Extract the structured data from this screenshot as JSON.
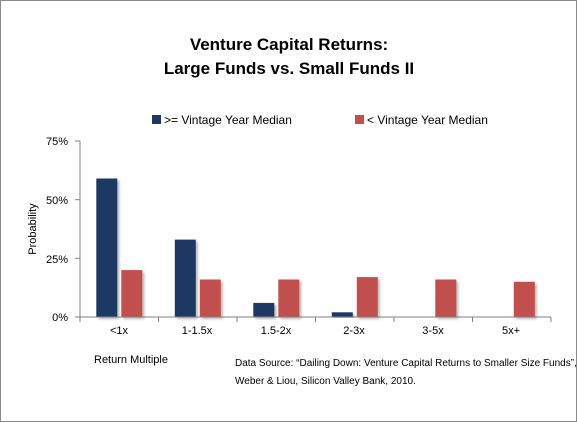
{
  "chart_data": {
    "type": "bar",
    "title_lines": [
      "Venture Capital Returns:",
      "Large Funds vs. Small Funds II"
    ],
    "categories": [
      "<1x",
      "1-1.5x",
      "1.5-2x",
      "2-3x",
      "3-5x",
      "5x+"
    ],
    "series": [
      {
        "name": ">= Vintage Year Median",
        "color": "#1f3864",
        "values": [
          59,
          33,
          6,
          2,
          0,
          0
        ]
      },
      {
        "name": "< Vintage Year Median",
        "color": "#c0504d",
        "values": [
          20,
          16,
          16,
          17,
          16,
          15
        ]
      }
    ],
    "ylim": [
      0,
      75
    ],
    "yticks": [
      0,
      25,
      50,
      75
    ],
    "ytick_labels": [
      "0%",
      "25%",
      "50%",
      "75%"
    ],
    "xlabel": "Return Multiple",
    "ylabel": "Probability",
    "legend_position": "top",
    "grid": false,
    "source_lines": [
      "Data Source: “Dailing Down: Venture Capital Returns to Smaller Size Funds”,",
      "Weber & Liou, Silicon Valley Bank, 2010."
    ]
  }
}
